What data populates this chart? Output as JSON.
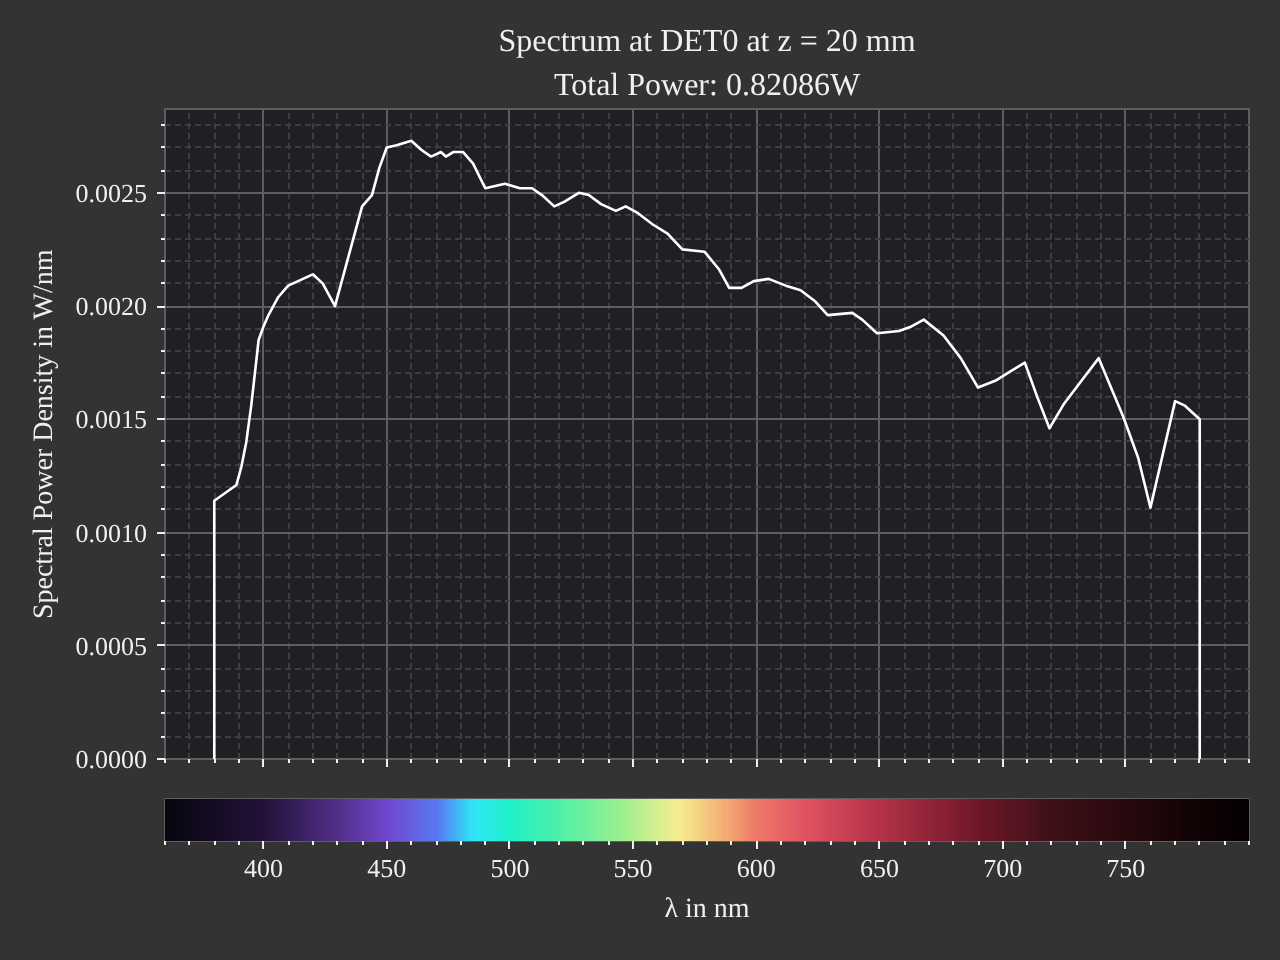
{
  "chart_data": {
    "type": "line",
    "title": "Spectrum at DET0 at z = 20 mm",
    "subtitle": "Total Power: 0.82086W",
    "xlabel": "λ in nm",
    "ylabel": "Spectral Power Density in W/nm",
    "x": [
      380,
      380,
      389,
      391,
      393,
      395,
      398,
      400,
      402,
      406,
      410,
      416,
      420,
      424,
      429,
      433,
      437,
      440,
      444,
      447,
      450,
      454,
      460,
      464,
      468,
      472,
      474,
      477,
      481,
      485,
      490,
      498,
      504,
      509,
      513,
      518,
      522,
      528,
      532,
      537,
      543,
      547,
      552,
      558,
      564,
      570,
      579,
      585,
      589,
      594,
      599,
      605,
      612,
      618,
      624,
      629,
      639,
      643,
      649,
      658,
      663,
      668,
      676,
      683,
      690,
      697,
      703,
      709,
      714,
      719,
      725,
      732,
      739,
      749,
      755,
      760,
      770,
      774,
      780,
      780
    ],
    "series": [
      {
        "color": "#ffffff",
        "values": [
          0,
          0.00114,
          0.00121,
          0.00129,
          0.0014,
          0.00156,
          0.00185,
          0.00191,
          0.00196,
          0.00204,
          0.00209,
          0.00212,
          0.00214,
          0.0021,
          0.002,
          0.00216,
          0.00232,
          0.00244,
          0.00249,
          0.00261,
          0.0027,
          0.00271,
          0.00273,
          0.00269,
          0.00266,
          0.00268,
          0.00266,
          0.00268,
          0.00268,
          0.00263,
          0.00252,
          0.00254,
          0.00252,
          0.00252,
          0.00249,
          0.00244,
          0.00246,
          0.0025,
          0.00249,
          0.00245,
          0.00242,
          0.00244,
          0.00241,
          0.00236,
          0.00232,
          0.00225,
          0.00224,
          0.00216,
          0.00208,
          0.00208,
          0.00211,
          0.00212,
          0.00209,
          0.00207,
          0.00202,
          0.00196,
          0.00197,
          0.00194,
          0.00188,
          0.00189,
          0.00191,
          0.00194,
          0.00187,
          0.00177,
          0.00164,
          0.00167,
          0.00171,
          0.00175,
          0.0016,
          0.00146,
          0.00157,
          0.00167,
          0.00177,
          0.00151,
          0.00133,
          0.00111,
          0.00158,
          0.00156,
          0.0015,
          0
        ]
      }
    ],
    "xlim": [
      360,
      800
    ],
    "ylim": [
      0,
      0.00287
    ],
    "xticks": [
      400,
      450,
      500,
      550,
      600,
      650,
      700,
      750
    ],
    "yticks": [
      {
        "value": 0,
        "label": "0.0000"
      },
      0.0005,
      {
        "value": 0.001,
        "label": "0.0010"
      },
      0.0015,
      {
        "value": 0.002,
        "label": "0.0020"
      },
      0.0025
    ],
    "grid": true
  }
}
